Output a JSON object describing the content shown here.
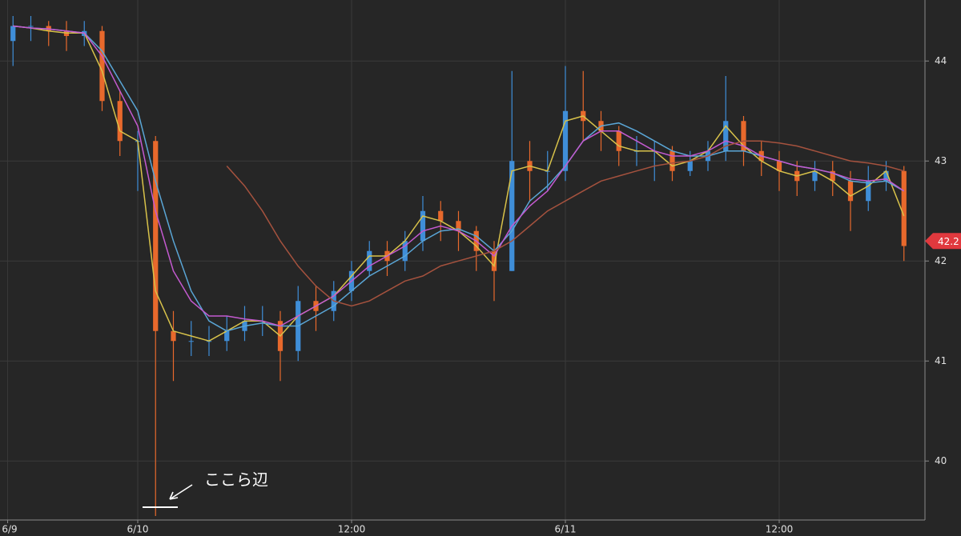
{
  "chart_data": {
    "type": "candlestick",
    "x": [
      17,
      18,
      19,
      20,
      21,
      22,
      23,
      24,
      25,
      26,
      27,
      28,
      29,
      30,
      31,
      32,
      33,
      34,
      35,
      36,
      37,
      38,
      39,
      40,
      41,
      42,
      43,
      44,
      45,
      46,
      47,
      48,
      49,
      50,
      51,
      52,
      53,
      54,
      55,
      56,
      57,
      58,
      59,
      60,
      61,
      62,
      63,
      64,
      65,
      66,
      67
    ],
    "open": [
      44.2,
      44.35,
      44.35,
      44.3,
      44.25,
      44.3,
      43.6,
      43.2,
      43.2,
      41.3,
      41.2,
      41.2,
      41.2,
      41.3,
      41.4,
      41.4,
      41.1,
      41.6,
      41.5,
      41.7,
      41.9,
      42.1,
      42.0,
      42.2,
      42.5,
      42.4,
      42.3,
      42.1,
      41.9,
      43.0,
      42.9,
      42.9,
      43.5,
      43.4,
      43.3,
      43.1,
      43.1,
      43.1,
      42.9,
      43.0,
      43.1,
      43.4,
      43.1,
      43.0,
      42.9,
      42.8,
      42.9,
      42.8,
      42.6,
      42.8,
      42.9
    ],
    "high": [
      44.45,
      44.45,
      44.4,
      44.4,
      44.4,
      44.35,
      43.7,
      43.3,
      43.25,
      41.5,
      41.4,
      41.35,
      41.45,
      41.55,
      41.55,
      41.5,
      41.75,
      41.75,
      41.8,
      42.0,
      42.2,
      42.2,
      42.3,
      42.65,
      42.6,
      42.5,
      42.35,
      42.2,
      43.9,
      43.2,
      43.1,
      43.95,
      43.9,
      43.5,
      43.35,
      43.25,
      43.2,
      43.15,
      43.1,
      43.2,
      43.85,
      43.45,
      43.2,
      43.1,
      43.0,
      43.0,
      43.0,
      42.9,
      42.95,
      43.0,
      42.95
    ],
    "low": [
      43.95,
      44.2,
      44.15,
      44.1,
      44.15,
      43.5,
      43.05,
      42.7,
      39.45,
      40.8,
      41.05,
      41.05,
      41.1,
      41.2,
      41.25,
      40.8,
      41.0,
      41.3,
      41.4,
      41.6,
      41.85,
      41.85,
      41.9,
      42.1,
      42.2,
      42.1,
      41.9,
      41.6,
      41.9,
      42.6,
      42.7,
      42.8,
      43.2,
      43.1,
      42.95,
      42.95,
      42.8,
      42.8,
      42.85,
      42.9,
      43.0,
      42.95,
      42.85,
      42.7,
      42.65,
      42.7,
      42.65,
      42.3,
      42.5,
      42.7,
      42.0
    ],
    "close": [
      44.35,
      44.35,
      44.3,
      44.25,
      44.3,
      43.6,
      43.2,
      43.2,
      41.3,
      41.2,
      41.2,
      41.2,
      41.3,
      41.4,
      41.4,
      41.1,
      41.6,
      41.5,
      41.7,
      41.9,
      42.1,
      42.0,
      42.2,
      42.5,
      42.4,
      42.3,
      42.1,
      41.9,
      43.0,
      42.9,
      42.9,
      43.5,
      43.4,
      43.3,
      43.1,
      43.1,
      43.1,
      42.9,
      43.0,
      43.1,
      43.4,
      43.1,
      43.0,
      42.9,
      42.8,
      42.9,
      42.8,
      42.6,
      42.8,
      42.9,
      42.15
    ],
    "up_color": "#3f8ed8",
    "down_color": "#e8692c",
    "series": [
      {
        "color": "#d8c24a",
        "values": [
          44.35,
          44.33,
          44.3,
          44.28,
          44.28,
          43.9,
          43.3,
          43.2,
          41.7,
          41.3,
          41.25,
          41.2,
          41.3,
          41.4,
          41.4,
          41.25,
          41.45,
          41.55,
          41.65,
          41.85,
          42.05,
          42.05,
          42.2,
          42.45,
          42.4,
          42.3,
          42.15,
          41.95,
          42.9,
          42.95,
          42.9,
          43.4,
          43.45,
          43.3,
          43.15,
          43.1,
          43.1,
          42.95,
          43.0,
          43.1,
          43.35,
          43.15,
          43.0,
          42.9,
          42.85,
          42.9,
          42.8,
          42.65,
          42.75,
          42.9,
          42.45
        ]
      },
      {
        "color": "#5aa6d6",
        "values": [
          44.35,
          44.33,
          44.32,
          44.3,
          44.28,
          44.1,
          43.8,
          43.5,
          42.8,
          42.2,
          41.7,
          41.4,
          41.3,
          41.35,
          41.38,
          41.35,
          41.35,
          41.45,
          41.55,
          41.7,
          41.85,
          41.95,
          42.05,
          42.2,
          42.3,
          42.32,
          42.25,
          42.1,
          42.3,
          42.6,
          42.75,
          42.95,
          43.2,
          43.35,
          43.38,
          43.3,
          43.2,
          43.1,
          43.05,
          43.05,
          43.1,
          43.1,
          43.05,
          43.0,
          42.95,
          42.92,
          42.88,
          42.8,
          42.78,
          42.8,
          42.7
        ]
      },
      {
        "color": "#c45ad0",
        "values": [
          44.35,
          44.33,
          44.32,
          44.3,
          44.28,
          44.05,
          43.7,
          43.35,
          42.5,
          41.9,
          41.6,
          41.45,
          41.45,
          41.42,
          41.4,
          41.35,
          41.45,
          41.55,
          41.65,
          41.8,
          41.95,
          42.05,
          42.15,
          42.3,
          42.35,
          42.3,
          42.2,
          42.05,
          42.35,
          42.55,
          42.7,
          42.95,
          43.2,
          43.3,
          43.3,
          43.2,
          43.1,
          43.05,
          43.05,
          43.1,
          43.2,
          43.15,
          43.05,
          43.0,
          42.95,
          42.92,
          42.88,
          42.82,
          42.8,
          42.82,
          42.7
        ]
      },
      {
        "color": "#a5523e",
        "values": [
          null,
          null,
          null,
          null,
          null,
          null,
          null,
          null,
          null,
          null,
          null,
          null,
          42.95,
          42.75,
          42.5,
          42.2,
          41.95,
          41.75,
          41.6,
          41.55,
          41.6,
          41.7,
          41.8,
          41.85,
          41.95,
          42.0,
          42.05,
          42.1,
          42.2,
          42.35,
          42.5,
          42.6,
          42.7,
          42.8,
          42.85,
          42.9,
          42.95,
          42.98,
          43.0,
          43.05,
          43.15,
          43.2,
          43.2,
          43.18,
          43.15,
          43.1,
          43.05,
          43.0,
          42.98,
          42.95,
          42.9
        ]
      }
    ],
    "xlim": [
      16.27,
      68.18
    ],
    "xticks": [
      {
        "value": 16.7,
        "label": "6/9"
      },
      {
        "value": 24,
        "label": "6/10"
      },
      {
        "value": 36,
        "label": "12:00"
      },
      {
        "value": 48,
        "label": "6/11"
      },
      {
        "value": 60,
        "label": "12:00"
      }
    ],
    "ylim": [
      39.41,
      44.61
    ],
    "yticks": [
      40,
      41,
      42,
      43,
      44
    ],
    "grid": true,
    "last_price": 42.2,
    "last_price_color": "#e0393e",
    "annotation": "ここら辺"
  }
}
